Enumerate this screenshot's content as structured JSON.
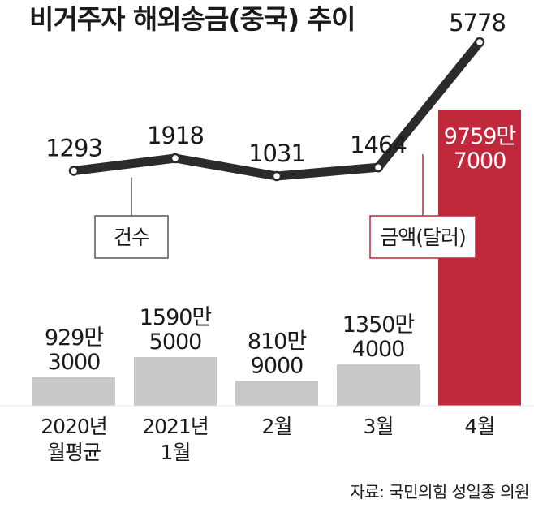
{
  "chart_data": {
    "type": "bar+line",
    "title": "비거주자 해외송금(중국) 추이",
    "categories": [
      [
        "2020년",
        "월평균"
      ],
      [
        "2021년",
        "1월"
      ],
      [
        "2월"
      ],
      [
        "3월"
      ],
      [
        "4월"
      ]
    ],
    "series": [
      {
        "name": "건수",
        "type": "line",
        "values": [
          1293,
          1918,
          1031,
          1464,
          5778
        ],
        "labels": [
          "1293",
          "1918",
          "1031",
          "1464",
          "5778"
        ],
        "color": "#2b2b2b"
      },
      {
        "name": "금액(달러)",
        "type": "bar",
        "values": [
          9293000,
          15905000,
          8109000,
          13504000,
          97597000
        ],
        "labels": [
          [
            "929만",
            "3000"
          ],
          [
            "1590만",
            "5000"
          ],
          [
            "810만",
            "9000"
          ],
          [
            "1350만",
            "4000"
          ],
          [
            "9759만",
            "7000"
          ]
        ],
        "color": "#c8c8c8",
        "highlight_color": "#c0283c"
      }
    ],
    "source": "자료: 국민의힘 성일종 의원"
  }
}
